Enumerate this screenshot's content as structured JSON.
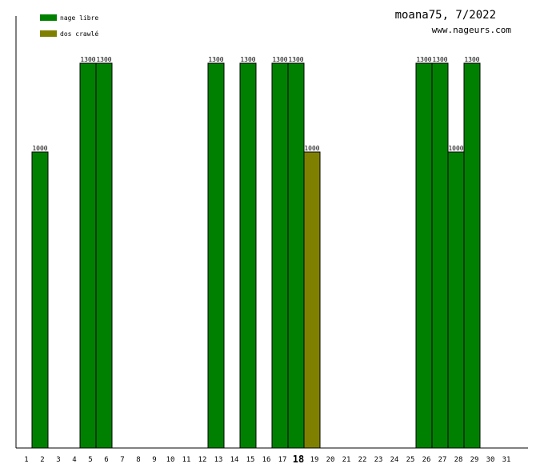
{
  "chart_data": {
    "type": "bar",
    "title": "moana75, 7/2022",
    "subtitle": "www.nageurs.com",
    "xlabel": "",
    "ylabel": "",
    "ylim": [
      0,
      1750
    ],
    "categories": [
      "1",
      "2",
      "3",
      "4",
      "5",
      "6",
      "7",
      "8",
      "9",
      "10",
      "11",
      "12",
      "13",
      "14",
      "15",
      "16",
      "17",
      "18",
      "19",
      "20",
      "21",
      "22",
      "23",
      "24",
      "25",
      "26",
      "27",
      "28",
      "29",
      "30",
      "31"
    ],
    "highlight_category": "18",
    "series": [
      {
        "name": "nage libre",
        "color": "#008000",
        "values": [
          0,
          1000,
          0,
          0,
          1300,
          1300,
          0,
          0,
          0,
          0,
          0,
          0,
          1300,
          0,
          1300,
          0,
          1300,
          1300,
          0,
          0,
          0,
          0,
          0,
          0,
          0,
          1300,
          1300,
          1000,
          1300,
          0,
          0
        ]
      },
      {
        "name": "dos crawlé",
        "color": "#808000",
        "values": [
          0,
          0,
          0,
          0,
          0,
          0,
          0,
          0,
          0,
          0,
          0,
          0,
          0,
          0,
          0,
          0,
          0,
          0,
          1000,
          0,
          0,
          0,
          0,
          0,
          0,
          0,
          0,
          0,
          0,
          0,
          0
        ]
      }
    ],
    "legend": "top-left",
    "grid": false
  }
}
